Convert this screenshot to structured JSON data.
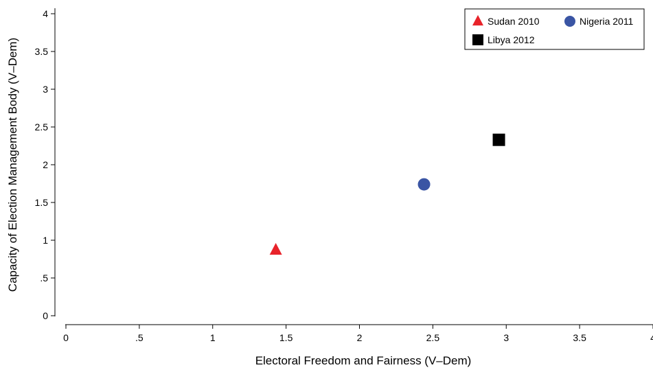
{
  "chart_data": {
    "type": "scatter",
    "title": "",
    "xlabel": "Electoral Freedom and Fairness (V–Dem)",
    "ylabel": "Capacity of Election Management Body (V–Dem)",
    "xlim": [
      0,
      4
    ],
    "ylim": [
      0,
      4
    ],
    "x_ticks": [
      0,
      0.5,
      1,
      1.5,
      2,
      2.5,
      3,
      3.5,
      4
    ],
    "x_tick_labels": [
      "0",
      ".5",
      "1",
      "1.5",
      "2",
      "2.5",
      "3",
      "3.5",
      "4"
    ],
    "y_ticks": [
      0,
      0.5,
      1,
      1.5,
      2,
      2.5,
      3,
      3.5,
      4
    ],
    "y_tick_labels": [
      "0",
      ".5",
      "1",
      "1.5",
      "2",
      "2.5",
      "3",
      "3.5",
      "4"
    ],
    "grid": false,
    "legend_position": "top-right",
    "series": [
      {
        "name": "Sudan 2010",
        "marker": "triangle",
        "color": "#e8232a",
        "x": 1.43,
        "y": 0.87
      },
      {
        "name": "Nigeria 2011",
        "marker": "circle",
        "color": "#3a55a4",
        "x": 2.44,
        "y": 1.74
      },
      {
        "name": "Libya 2012",
        "marker": "square",
        "color": "#000000",
        "x": 2.95,
        "y": 2.33
      }
    ]
  }
}
